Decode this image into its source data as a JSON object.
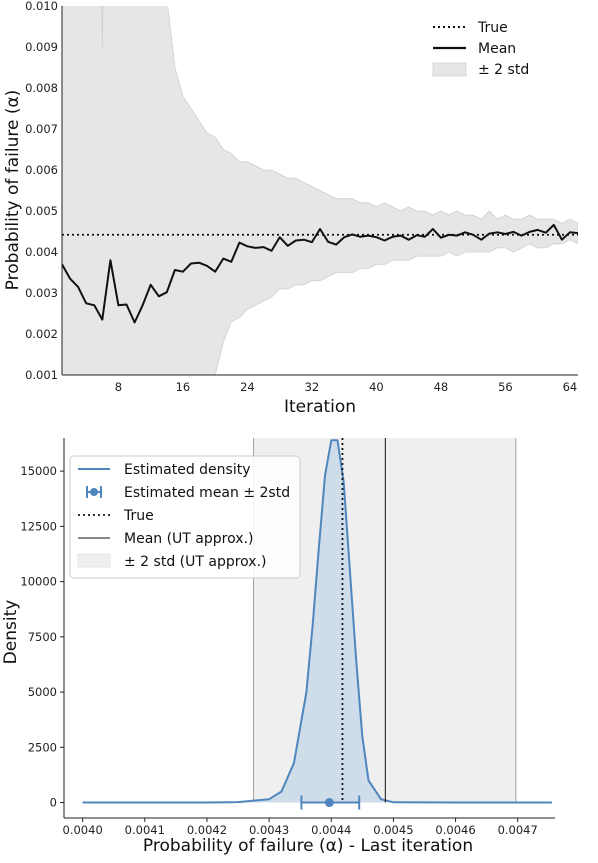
{
  "chart_data": [
    {
      "type": "line",
      "xlabel": "Iteration",
      "ylabel": "Probability of failure (α)",
      "xlim": [
        1,
        65
      ],
      "ylim": [
        0.001,
        0.01
      ],
      "xticks": [
        8,
        16,
        24,
        32,
        40,
        48,
        56,
        64
      ],
      "yticks": [
        0.001,
        0.002,
        0.003,
        0.004,
        0.005,
        0.006,
        0.007,
        0.008,
        0.009,
        0.01
      ],
      "ytick_labels": [
        "0.001",
        "0.002",
        "0.003",
        "0.004",
        "0.005",
        "0.006",
        "0.007",
        "0.008",
        "0.009",
        "0.010"
      ],
      "grid": false,
      "legend_position": "top-right",
      "legend": [
        "True",
        "Mean",
        "± 2 std"
      ],
      "true_value": 0.00442,
      "series": [
        {
          "name": "Mean",
          "x": [
            1,
            2,
            3,
            4,
            5,
            6,
            7,
            8,
            9,
            10,
            11,
            12,
            13,
            14,
            15,
            16,
            17,
            18,
            19,
            20,
            21,
            22,
            23,
            24,
            25,
            26,
            27,
            28,
            29,
            30,
            31,
            32,
            33,
            34,
            35,
            36,
            37,
            38,
            39,
            40,
            41,
            42,
            43,
            44,
            45,
            46,
            47,
            48,
            49,
            50,
            51,
            52,
            53,
            54,
            55,
            56,
            57,
            58,
            59,
            60,
            61,
            62,
            63,
            64,
            65
          ],
          "values": [
            0.0037,
            0.00335,
            0.00315,
            0.00275,
            0.0027,
            0.00235,
            0.0038,
            0.0027,
            0.00272,
            0.00228,
            0.0027,
            0.0032,
            0.00292,
            0.00302,
            0.00356,
            0.00352,
            0.00372,
            0.00374,
            0.00366,
            0.00352,
            0.00384,
            0.00376,
            0.00423,
            0.00414,
            0.0041,
            0.00412,
            0.00403,
            0.00436,
            0.00415,
            0.00428,
            0.0043,
            0.00424,
            0.00456,
            0.00425,
            0.00418,
            0.00436,
            0.00443,
            0.00437,
            0.0044,
            0.00436,
            0.00428,
            0.00437,
            0.0044,
            0.0043,
            0.00441,
            0.00437,
            0.00456,
            0.00435,
            0.00442,
            0.0044,
            0.00448,
            0.00442,
            0.0043,
            0.00445,
            0.00448,
            0.00444,
            0.00449,
            0.0044,
            0.00449,
            0.00454,
            0.00447,
            0.00466,
            0.0043,
            0.00448,
            0.00446
          ]
        },
        {
          "name": "± 2 std",
          "x": [
            1,
            2,
            3,
            4,
            5,
            6,
            7,
            8,
            9,
            10,
            11,
            12,
            13,
            14,
            15,
            16,
            17,
            18,
            19,
            20,
            21,
            22,
            23,
            24,
            25,
            26,
            27,
            28,
            29,
            30,
            31,
            32,
            33,
            34,
            35,
            36,
            37,
            38,
            39,
            40,
            41,
            42,
            43,
            44,
            45,
            46,
            47,
            48,
            49,
            50,
            51,
            52,
            53,
            54,
            55,
            56,
            57,
            58,
            59,
            60,
            61,
            62,
            63,
            64,
            65
          ],
          "upper": [
            0.0105,
            0.0105,
            0.0105,
            0.0105,
            0.0105,
            0.0105,
            0.0105,
            0.0105,
            0.0105,
            0.0105,
            0.0105,
            0.0105,
            0.0105,
            0.0102,
            0.0085,
            0.0078,
            0.0075,
            0.0072,
            0.0069,
            0.0068,
            0.0065,
            0.0064,
            0.0062,
            0.0062,
            0.0061,
            0.006,
            0.006,
            0.0059,
            0.0058,
            0.0058,
            0.0057,
            0.0056,
            0.0055,
            0.0054,
            0.0053,
            0.0053,
            0.0053,
            0.0052,
            0.0052,
            0.0051,
            0.0052,
            0.0051,
            0.005,
            0.0051,
            0.005,
            0.005,
            0.0049,
            0.005,
            0.0049,
            0.005,
            0.0049,
            0.0049,
            0.0048,
            0.005,
            0.0048,
            0.0049,
            0.0048,
            0.0048,
            0.0049,
            0.0048,
            0.0048,
            0.0048,
            0.0047,
            0.0048,
            0.0047
          ],
          "lower": [
            0.0005,
            0.0005,
            0.0005,
            0.0005,
            0.0005,
            0.0005,
            0.0005,
            0.0005,
            0.0005,
            0.0005,
            0.0005,
            0.0005,
            0.0005,
            0.0005,
            0.0005,
            0.0005,
            0.0005,
            0.0005,
            0.0005,
            0.001,
            0.0018,
            0.0023,
            0.0024,
            0.0026,
            0.0027,
            0.0028,
            0.0029,
            0.0031,
            0.0031,
            0.0032,
            0.0032,
            0.0033,
            0.0033,
            0.0034,
            0.0035,
            0.0035,
            0.0035,
            0.0036,
            0.0036,
            0.0037,
            0.0037,
            0.0038,
            0.0038,
            0.0038,
            0.0039,
            0.0039,
            0.0039,
            0.0039,
            0.004,
            0.0039,
            0.004,
            0.004,
            0.004,
            0.004,
            0.0041,
            0.0041,
            0.004,
            0.0041,
            0.0042,
            0.0041,
            0.0041,
            0.0042,
            0.0042,
            0.0043,
            0.0042
          ],
          "upper_notch": {
            "x": 6,
            "value": 0.009
          }
        }
      ]
    },
    {
      "type": "area",
      "xlabel": "Probability of failure (α) - Last iteration",
      "ylabel": "Density",
      "xlim": [
        0.00397,
        0.00476
      ],
      "ylim": [
        -700,
        16500
      ],
      "xticks": [
        0.004,
        0.0041,
        0.0042,
        0.0043,
        0.0044,
        0.0045,
        0.0046,
        0.0047
      ],
      "xtick_labels": [
        "0.0040",
        "0.0041",
        "0.0042",
        "0.0043",
        "0.0044",
        "0.0045",
        "0.0046",
        "0.0047"
      ],
      "yticks": [
        0,
        2500,
        5000,
        7500,
        10000,
        12500,
        15000
      ],
      "ytick_labels": [
        "0",
        "2500",
        "5000",
        "7500",
        "10000",
        "12500",
        "15000"
      ],
      "grid": false,
      "legend_position": "top-left",
      "legend": [
        "Estimated density",
        "Estimated mean ± 2std",
        "True",
        "Mean (UT approx.)",
        "± 2 std (UT approx.)"
      ],
      "series": [
        {
          "name": "Estimated density",
          "x": [
            0.004,
            0.0042,
            0.00425,
            0.0043,
            0.00432,
            0.00434,
            0.00436,
            0.00437,
            0.00438,
            0.00439,
            0.0044,
            0.00441,
            0.00442,
            0.00443,
            0.00444,
            0.00445,
            0.00446,
            0.00448,
            0.0045,
            0.0046,
            0.004755
          ],
          "values": [
            0,
            0,
            20,
            150,
            500,
            1800,
            5000,
            8000,
            11500,
            14800,
            16400,
            16400,
            14500,
            10500,
            6500,
            3000,
            1000,
            150,
            10,
            0,
            0
          ]
        },
        {
          "name": "Estimated mean ± 2std",
          "mean": 0.004397,
          "lower": 0.004352,
          "upper": 0.004445
        },
        {
          "name": "True",
          "value": 0.004418
        },
        {
          "name": "Mean (UT approx.)",
          "value": 0.004487
        },
        {
          "name": "± 2 std (UT approx.)",
          "lower": 0.004275,
          "upper": 0.004697
        }
      ],
      "colors": {
        "density": "#4f86bd",
        "density_fill": "#c9d8e8",
        "band": "#efefef"
      }
    }
  ]
}
